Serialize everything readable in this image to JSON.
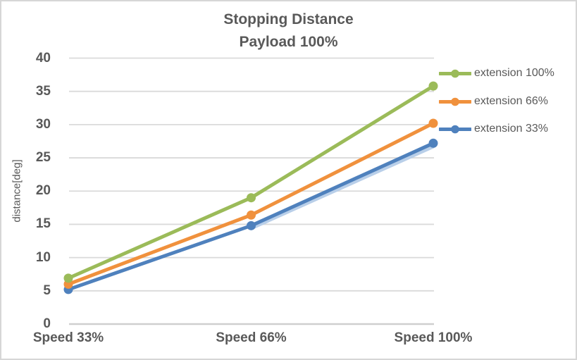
{
  "title": {
    "line1": "Stopping Distance",
    "line2": "Payload 100%"
  },
  "chart_data": {
    "type": "line",
    "title": "Stopping Distance",
    "subtitle": "Payload 100%",
    "categories": [
      "Speed 33%",
      "Speed 66%",
      "Speed 100%"
    ],
    "series": [
      {
        "name": "extension 100%",
        "color": "#9BBB59",
        "values": [
          6.9,
          19.0,
          35.8
        ]
      },
      {
        "name": "extension 66%",
        "color": "#F0913D",
        "values": [
          6.0,
          16.4,
          30.2
        ]
      },
      {
        "name": "extension 33%",
        "color": "#4F81BD",
        "values": [
          5.2,
          14.8,
          27.2
        ],
        "shadow_color": "#B9CFE9"
      }
    ],
    "xlabel": "",
    "ylabel": "distance[deg]",
    "ylim": [
      0,
      40
    ],
    "yticks": [
      0,
      5,
      10,
      15,
      20,
      25,
      30,
      35,
      40
    ],
    "grid": true,
    "legend_position": "right",
    "marker": "circle"
  },
  "colors": {
    "text": "#595959",
    "gridline": "#DADADA",
    "axis_line": "#CFCFCF",
    "border": "#D6D6D6",
    "background": "#FFFFFF"
  }
}
